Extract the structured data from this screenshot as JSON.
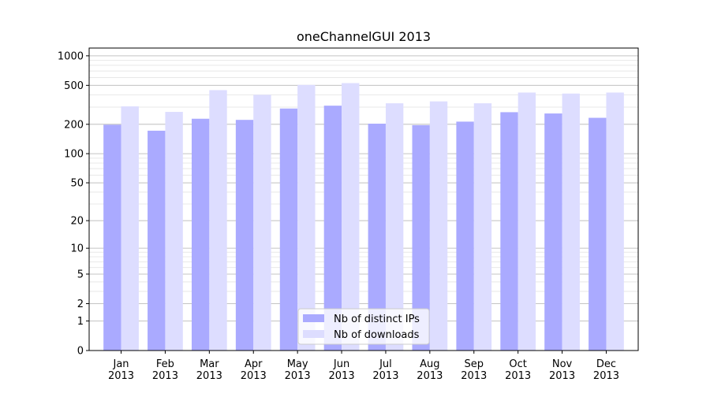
{
  "chart_data": {
    "type": "bar",
    "title": "oneChannelGUI 2013",
    "xlabel": "",
    "ylabel": "",
    "yscale": "log(1+y)",
    "ylim": [
      0,
      1200
    ],
    "y_ticks": [
      0,
      1,
      2,
      5,
      10,
      20,
      50,
      100,
      200,
      500,
      1000
    ],
    "y_tick_labels": [
      "0",
      "1",
      "2",
      "5",
      "10",
      "20",
      "50",
      "100",
      "200",
      "500",
      "1000"
    ],
    "grid": true,
    "legend_position": "bottom-center",
    "categories": [
      [
        "Jan",
        "2013"
      ],
      [
        "Feb",
        "2013"
      ],
      [
        "Mar",
        "2013"
      ],
      [
        "Apr",
        "2013"
      ],
      [
        "May",
        "2013"
      ],
      [
        "Jun",
        "2013"
      ],
      [
        "Jul",
        "2013"
      ],
      [
        "Aug",
        "2013"
      ],
      [
        "Sep",
        "2013"
      ],
      [
        "Oct",
        "2013"
      ],
      [
        "Nov",
        "2013"
      ],
      [
        "Dec",
        "2013"
      ]
    ],
    "series": [
      {
        "name": "Nb of distinct IPs",
        "color": "#aaaaff",
        "values": [
          198,
          172,
          228,
          222,
          290,
          310,
          203,
          196,
          213,
          266,
          258,
          233
        ]
      },
      {
        "name": "Nb of downloads",
        "color": "#ddddff",
        "values": [
          305,
          268,
          447,
          400,
          505,
          527,
          328,
          343,
          328,
          422,
          412,
          422
        ]
      }
    ]
  }
}
